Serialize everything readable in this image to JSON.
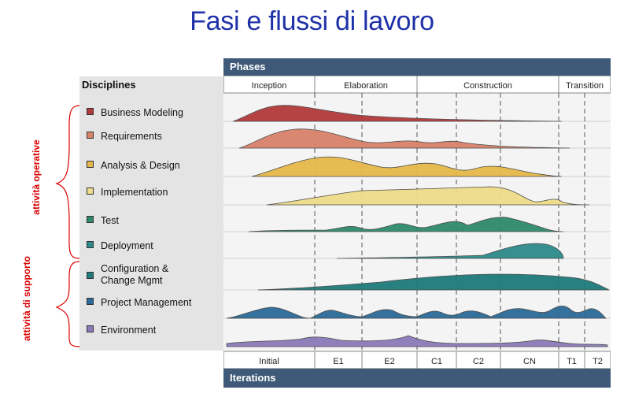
{
  "title": "Fasi e flussi di lavoro",
  "side_labels": {
    "operative": "attività operative",
    "supporto": "attività di supporto"
  },
  "header": {
    "disciplines": "Disciplines",
    "phases": "Phases",
    "iterations": "Iterations"
  },
  "phases": [
    "Inception",
    "Elaboration",
    "Construction",
    "Transition"
  ],
  "iterations": [
    "Initial",
    "E1",
    "E2",
    "C1",
    "C2",
    "CN",
    "T1",
    "T2"
  ],
  "disciplines": [
    {
      "label": "Business Modeling",
      "color": "#b33a3a"
    },
    {
      "label": "Requirements",
      "color": "#d9826a"
    },
    {
      "label": "Analysis & Design",
      "color": "#e6b84a"
    },
    {
      "label": "Implementation",
      "color": "#eedc8a"
    },
    {
      "label": "Test",
      "color": "#2e8a6a"
    },
    {
      "label": "Deployment",
      "color": "#2e8a8a"
    },
    {
      "label": "Configuration &\nChange Mgmt",
      "color": "#1f7a7a"
    },
    {
      "label": "Project Management",
      "color": "#2b6a99"
    },
    {
      "label": "Environment",
      "color": "#8a7ab8"
    }
  ],
  "colors": {
    "title": "#1f31a8",
    "side_label": "#d90000",
    "bar": "#3f5a78",
    "panel": "#e4e4e4"
  }
}
